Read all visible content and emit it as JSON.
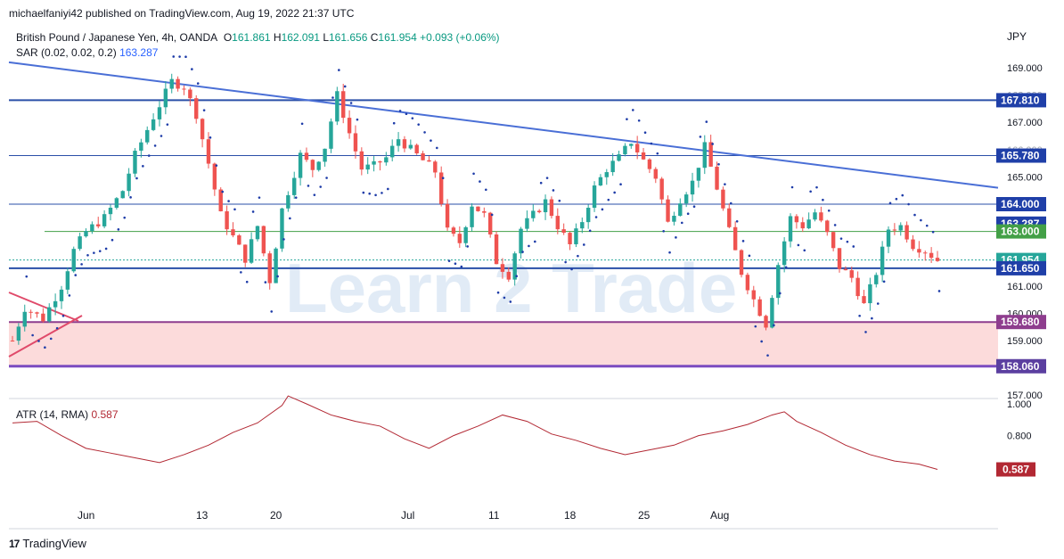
{
  "header": {
    "credit": "michaelfaniyi42 published on TradingView.com, Aug 19, 2022 21:37 UTC"
  },
  "legend": {
    "symbol": "British Pound / Japanese Yen, 4h, OANDA",
    "o_label": "O",
    "o": "161.861",
    "h_label": "H",
    "h": "162.091",
    "l_label": "L",
    "l": "161.656",
    "c_label": "C",
    "c": "161.954",
    "change": "+0.093 (+0.06%)",
    "sar_label": "SAR (0.02, 0.02, 0.2)",
    "sar_value": "163.287"
  },
  "atr": {
    "label": "ATR (14, RMA)",
    "value": "0.587"
  },
  "footer": {
    "brand": "TradingView"
  },
  "watermark": "Learn 2 Trade",
  "colors": {
    "up": "#26a69a",
    "down": "#ef5350",
    "trendline": "#4a6fd6",
    "level": "#2a4fa8",
    "green_level": "#43a047",
    "zone": "#fcd5d5",
    "atr": "#b22833"
  },
  "chart_data": {
    "type": "candlestick",
    "currency": "JPY",
    "price_ticks": [
      "169.000",
      "167.000",
      "165.000",
      "161.000",
      "160.000",
      "159.000",
      "157.000"
    ],
    "overlapped_ticks": [
      "168.000",
      "166.000",
      "164.000",
      "163.000",
      "162.000"
    ],
    "x_ticks": [
      "Jun",
      "13",
      "20",
      "Jul",
      "11",
      "18",
      "25",
      "Aug"
    ],
    "levels": [
      {
        "value": 167.81,
        "label": "167.810",
        "kind": "resistance"
      },
      {
        "value": 165.78,
        "label": "165.780",
        "kind": "resistance"
      },
      {
        "value": 164.0,
        "label": "164.000",
        "kind": "resistance"
      },
      {
        "value": 163.287,
        "label": "163.287",
        "kind": "sar"
      },
      {
        "value": 163.0,
        "label": "163.000",
        "kind": "green"
      },
      {
        "value": 161.954,
        "label": "161.954",
        "kind": "last"
      },
      {
        "value": 161.65,
        "label": "161.650",
        "kind": "support"
      },
      {
        "value": 159.68,
        "label": "159.680",
        "kind": "zone-top"
      },
      {
        "value": 158.06,
        "label": "158.060",
        "kind": "zone-bottom"
      }
    ],
    "descending_trendline": {
      "start": 169.2,
      "end": 164.6
    },
    "price_path": [
      [
        0,
        159.0
      ],
      [
        2,
        160.2
      ],
      [
        5,
        159.8
      ],
      [
        8,
        161.0
      ],
      [
        10,
        162.3
      ],
      [
        12,
        163.0
      ],
      [
        15,
        163.5
      ],
      [
        18,
        164.5
      ],
      [
        20,
        165.8
      ],
      [
        23,
        167.2
      ],
      [
        26,
        168.5
      ],
      [
        28,
        168.3
      ],
      [
        30,
        167.3
      ],
      [
        32,
        165.5
      ],
      [
        34,
        163.6
      ],
      [
        36,
        162.8
      ],
      [
        38,
        162.0
      ],
      [
        40,
        163.2
      ],
      [
        42,
        161.2
      ],
      [
        44,
        163.8
      ],
      [
        47,
        165.8
      ],
      [
        49,
        165.3
      ],
      [
        51,
        166.1
      ],
      [
        53,
        168.0
      ],
      [
        55,
        166.6
      ],
      [
        57,
        165.3
      ],
      [
        59,
        165.4
      ],
      [
        61,
        165.7
      ],
      [
        63,
        166.4
      ],
      [
        65,
        166.0
      ],
      [
        67,
        165.6
      ],
      [
        69,
        165.2
      ],
      [
        71,
        163.0
      ],
      [
        73,
        162.6
      ],
      [
        75,
        164.0
      ],
      [
        77,
        163.6
      ],
      [
        79,
        161.9
      ],
      [
        81,
        161.4
      ],
      [
        83,
        163.1
      ],
      [
        85,
        163.6
      ],
      [
        87,
        164.1
      ],
      [
        89,
        163.2
      ],
      [
        91,
        162.5
      ],
      [
        93,
        163.4
      ],
      [
        95,
        164.6
      ],
      [
        97,
        165.3
      ],
      [
        99,
        165.7
      ],
      [
        101,
        166.3
      ],
      [
        103,
        165.6
      ],
      [
        105,
        165.0
      ],
      [
        107,
        163.3
      ],
      [
        109,
        164.2
      ],
      [
        111,
        164.8
      ],
      [
        113,
        166.1
      ],
      [
        115,
        164.6
      ],
      [
        117,
        163.0
      ],
      [
        119,
        161.5
      ],
      [
        121,
        160.5
      ],
      [
        123,
        159.6
      ],
      [
        125,
        161.8
      ],
      [
        127,
        163.5
      ],
      [
        129,
        163.2
      ],
      [
        131,
        163.7
      ],
      [
        133,
        162.9
      ],
      [
        135,
        161.7
      ],
      [
        137,
        161.3
      ],
      [
        139,
        160.3
      ],
      [
        141,
        161.5
      ],
      [
        143,
        163.1
      ],
      [
        145,
        163.2
      ],
      [
        147,
        162.5
      ],
      [
        149,
        162.3
      ],
      [
        151,
        161.95
      ]
    ],
    "atr_ticks": [
      "1.000",
      "0.800"
    ],
    "atr_path": [
      [
        0,
        0.88
      ],
      [
        4,
        0.89
      ],
      [
        8,
        0.8
      ],
      [
        12,
        0.72
      ],
      [
        16,
        0.69
      ],
      [
        20,
        0.66
      ],
      [
        24,
        0.63
      ],
      [
        28,
        0.68
      ],
      [
        32,
        0.74
      ],
      [
        36,
        0.82
      ],
      [
        40,
        0.88
      ],
      [
        44,
        0.99
      ],
      [
        45,
        1.05
      ],
      [
        48,
        1.0
      ],
      [
        52,
        0.93
      ],
      [
        56,
        0.89
      ],
      [
        60,
        0.86
      ],
      [
        64,
        0.78
      ],
      [
        68,
        0.72
      ],
      [
        72,
        0.8
      ],
      [
        76,
        0.86
      ],
      [
        80,
        0.93
      ],
      [
        84,
        0.89
      ],
      [
        88,
        0.81
      ],
      [
        92,
        0.77
      ],
      [
        96,
        0.72
      ],
      [
        100,
        0.68
      ],
      [
        104,
        0.71
      ],
      [
        108,
        0.74
      ],
      [
        112,
        0.8
      ],
      [
        116,
        0.83
      ],
      [
        120,
        0.87
      ],
      [
        124,
        0.93
      ],
      [
        126,
        0.95
      ],
      [
        128,
        0.89
      ],
      [
        132,
        0.82
      ],
      [
        136,
        0.74
      ],
      [
        140,
        0.68
      ],
      [
        144,
        0.64
      ],
      [
        148,
        0.62
      ],
      [
        151,
        0.587
      ]
    ]
  }
}
